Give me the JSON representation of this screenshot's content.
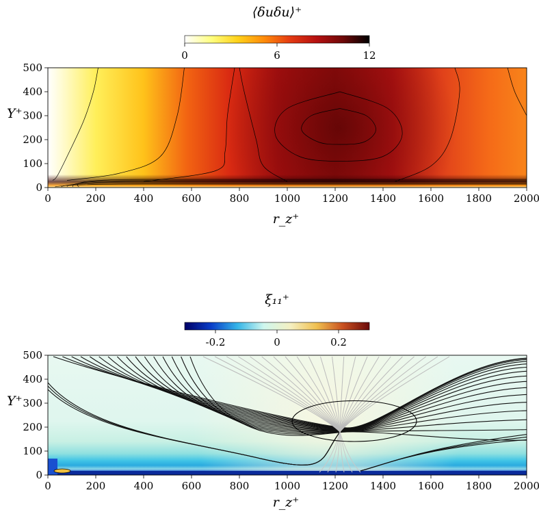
{
  "chart_data": [
    {
      "type": "heatmap",
      "title": "⟨δuδu⟩⁺",
      "xlabel": "r_z⁺",
      "ylabel": "Y⁺",
      "xlim": [
        0,
        2000
      ],
      "ylim": [
        0,
        500
      ],
      "x_ticks": [
        "0",
        "200",
        "400",
        "600",
        "800",
        "1000",
        "1200",
        "1400",
        "1600",
        "1800",
        "2000"
      ],
      "y_ticks": [
        "0",
        "100",
        "200",
        "300",
        "400",
        "500"
      ],
      "colorbar": {
        "range": [
          0,
          12
        ],
        "ticks": [
          "0",
          "6",
          "12"
        ],
        "colors": [
          "#ffffff",
          "#ffff80",
          "#ffd21a",
          "#ff8c0a",
          "#e43a12",
          "#b51010",
          "#6e0808",
          "#000000"
        ]
      },
      "peak": {
        "x": 1220,
        "y": 250,
        "value": 11.5
      },
      "contours": [
        {
          "level": 3,
          "points": [
            [
              20,
              30
            ],
            [
              40,
              50
            ],
            [
              90,
              150
            ],
            [
              150,
              280
            ],
            [
              190,
              400
            ],
            [
              210,
              500
            ]
          ]
        },
        {
          "level": 6,
          "points": [
            [
              80,
              30
            ],
            [
              300,
              60
            ],
            [
              470,
              130
            ],
            [
              540,
              300
            ],
            [
              570,
              500
            ]
          ]
        },
        {
          "level": 8,
          "points": [
            [
              400,
              25
            ],
            [
              700,
              70
            ],
            [
              740,
              150
            ],
            [
              750,
              300
            ],
            [
              780,
              500
            ]
          ]
        },
        {
          "level": 9.5,
          "points": [
            [
              1000,
              25
            ],
            [
              900,
              90
            ],
            [
              870,
              200
            ],
            [
              820,
              400
            ],
            [
              800,
              500
            ]
          ]
        },
        {
          "level": 9.5,
          "points": [
            [
              1450,
              25
            ],
            [
              1600,
              90
            ],
            [
              1680,
              200
            ],
            [
              1720,
              400
            ],
            [
              1700,
              500
            ]
          ]
        },
        {
          "level": 10.5,
          "points": [
            [
              1220,
              400
            ],
            [
              1000,
              330
            ],
            [
              950,
              220
            ],
            [
              1050,
              130
            ],
            [
              1220,
              110
            ],
            [
              1400,
              130
            ],
            [
              1480,
              220
            ],
            [
              1420,
              330
            ],
            [
              1220,
              400
            ]
          ]
        },
        {
          "level": 11.2,
          "points": [
            [
              1220,
              330
            ],
            [
              1100,
              300
            ],
            [
              1060,
              240
            ],
            [
              1130,
              190
            ],
            [
              1220,
              180
            ],
            [
              1320,
              190
            ],
            [
              1370,
              240
            ],
            [
              1330,
              300
            ],
            [
              1220,
              330
            ]
          ]
        },
        {
          "level": 6,
          "points": [
            [
              1920,
              500
            ],
            [
              1950,
              400
            ],
            [
              2000,
              300
            ]
          ]
        }
      ]
    },
    {
      "type": "heatmap",
      "title": "ξ₁₁⁺",
      "xlabel": "r_z⁺",
      "ylabel": "Y⁺",
      "xlim": [
        0,
        2000
      ],
      "ylim": [
        0,
        500
      ],
      "x_ticks": [
        "0",
        "200",
        "400",
        "600",
        "800",
        "1000",
        "1200",
        "1400",
        "1600",
        "1800",
        "2000"
      ],
      "y_ticks": [
        "0",
        "100",
        "200",
        "300",
        "400",
        "500"
      ],
      "colorbar": {
        "range": [
          -0.3,
          0.3
        ],
        "ticks": [
          "-0.2",
          "0",
          "0.2"
        ],
        "colors": [
          "#000066",
          "#0a3ec8",
          "#35b5e8",
          "#cff7ee",
          "#f4f0c2",
          "#f0c050",
          "#c85020",
          "#6a0a0a"
        ]
      },
      "critical_point": {
        "x": 1220,
        "y": 180
      },
      "contour_ellipse": {
        "cx": 1280,
        "cy": 225,
        "rx": 260,
        "ry": 85
      }
    }
  ]
}
